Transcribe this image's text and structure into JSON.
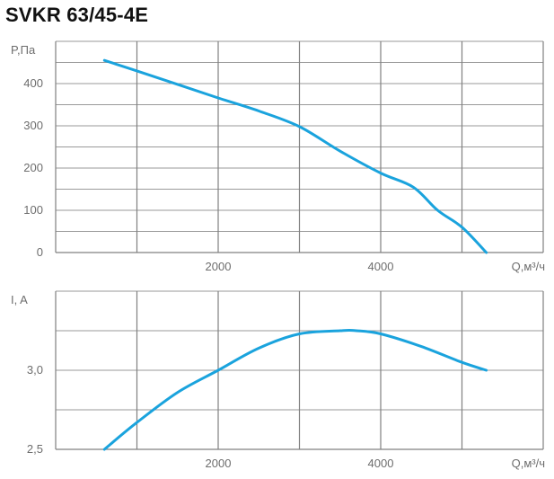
{
  "title": "SVKR 63/45-4E",
  "colors": {
    "curve": "#1aa3dd",
    "grid": "#808080",
    "minor_grid": "#9a9a9a",
    "text": "#6d6d6d"
  },
  "chart_data": [
    {
      "type": "line",
      "ylabel": "P,Па",
      "xlabel": "Q,м³/ч",
      "xlim": [
        0,
        6000
      ],
      "ylim": [
        0,
        500
      ],
      "x_ticks": [
        2000,
        4000
      ],
      "y_ticks": [
        0,
        100,
        200,
        300,
        400
      ],
      "x_grid": [
        1000,
        2000,
        3000,
        4000,
        5000,
        6000
      ],
      "y_grid": [
        50,
        100,
        150,
        200,
        250,
        300,
        350,
        400,
        450,
        500
      ],
      "series": [
        {
          "x": [
            600,
            1000,
            1500,
            2000,
            2500,
            3000,
            3500,
            4000,
            4400,
            4700,
            5000,
            5300
          ],
          "y": [
            455,
            430,
            398,
            366,
            335,
            298,
            240,
            188,
            155,
            100,
            60,
            0
          ]
        }
      ]
    },
    {
      "type": "line",
      "ylabel": "I, A",
      "xlabel": "Q,м³/ч",
      "xlim": [
        0,
        6000
      ],
      "ylim": [
        2.5,
        3.5
      ],
      "x_ticks": [
        2000,
        4000
      ],
      "y_ticks": [
        2.5,
        3.0
      ],
      "y_tick_labels": [
        "2,5",
        "3,0"
      ],
      "x_grid": [
        1000,
        2000,
        3000,
        4000,
        5000,
        6000
      ],
      "y_grid": [
        2.75,
        3.0,
        3.25,
        3.5
      ],
      "series": [
        {
          "x": [
            600,
            1000,
            1500,
            2000,
            2500,
            3000,
            3500,
            3700,
            4000,
            4500,
            5000,
            5300
          ],
          "y": [
            2.5,
            2.67,
            2.86,
            3.0,
            3.14,
            3.23,
            3.25,
            3.25,
            3.23,
            3.15,
            3.05,
            3.0
          ]
        }
      ]
    }
  ]
}
